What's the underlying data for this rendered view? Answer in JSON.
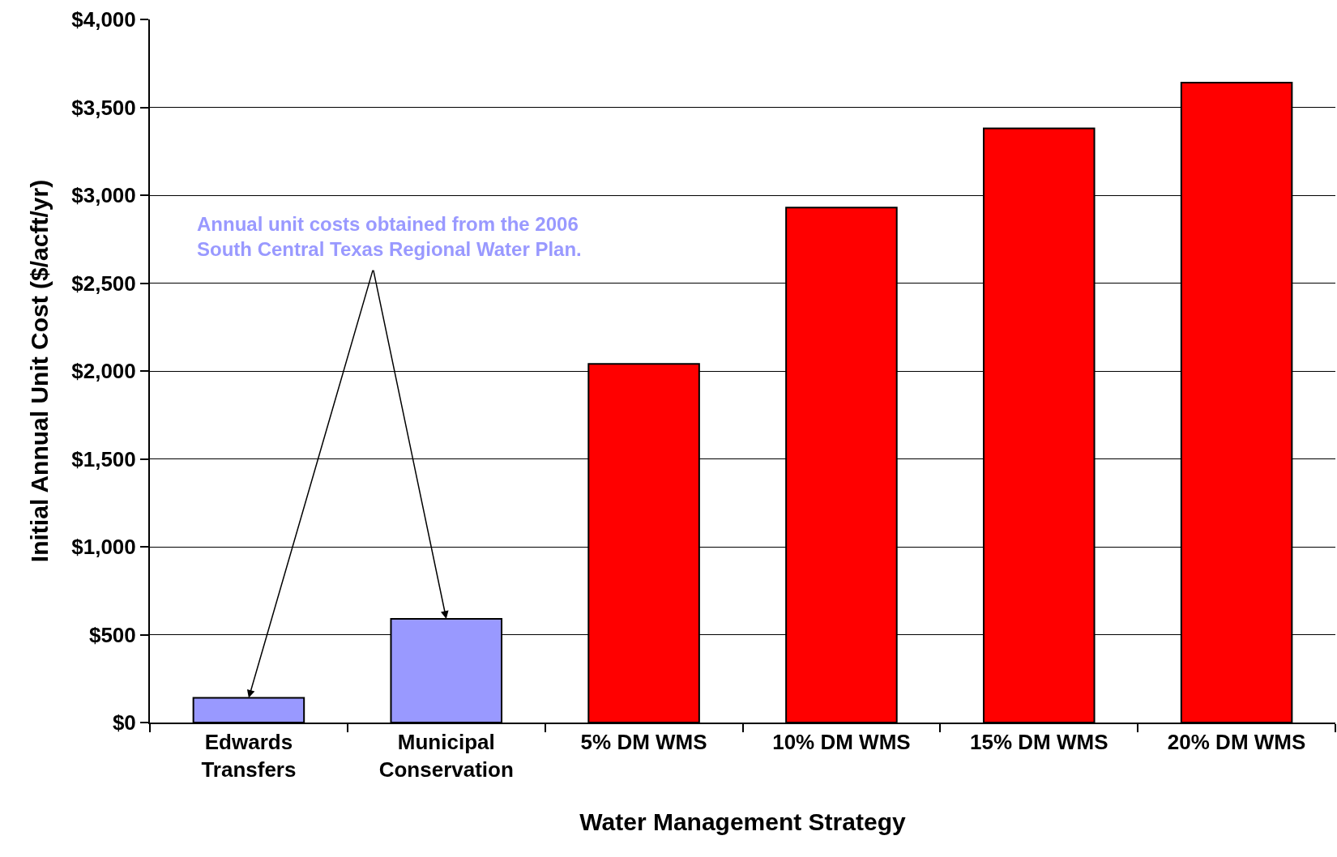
{
  "chart_data": {
    "type": "bar",
    "xlabel": "Water Management Strategy",
    "ylabel": "Initial Annual Unit Cost ($/acft/yr)",
    "categories": [
      "Edwards Transfers",
      "Municipal Conservation",
      "5% DM WMS",
      "10% DM WMS",
      "15% DM WMS",
      "20% DM WMS"
    ],
    "values": [
      140,
      590,
      2040,
      2930,
      3380,
      3640
    ],
    "colors": [
      "#9999ff",
      "#9999ff",
      "#ff0000",
      "#ff0000",
      "#ff0000",
      "#ff0000"
    ],
    "ylim": [
      0,
      4000
    ],
    "yticks": [
      {
        "value": 0,
        "label": "$0"
      },
      {
        "value": 500,
        "label": "$500"
      },
      {
        "value": 1000,
        "label": "$1,000"
      },
      {
        "value": 1500,
        "label": "$1,500"
      },
      {
        "value": 2000,
        "label": "$2,000"
      },
      {
        "value": 2500,
        "label": "$2,500"
      },
      {
        "value": 3000,
        "label": "$3,000"
      },
      {
        "value": 3500,
        "label": "$3,500"
      },
      {
        "value": 4000,
        "label": "$4,000"
      }
    ],
    "grid": "y",
    "annotations": [
      {
        "text": "Annual unit costs obtained from the 2006 South Central Texas Regional Water Plan.",
        "x": "Edwards Transfers",
        "y": 140
      }
    ]
  }
}
